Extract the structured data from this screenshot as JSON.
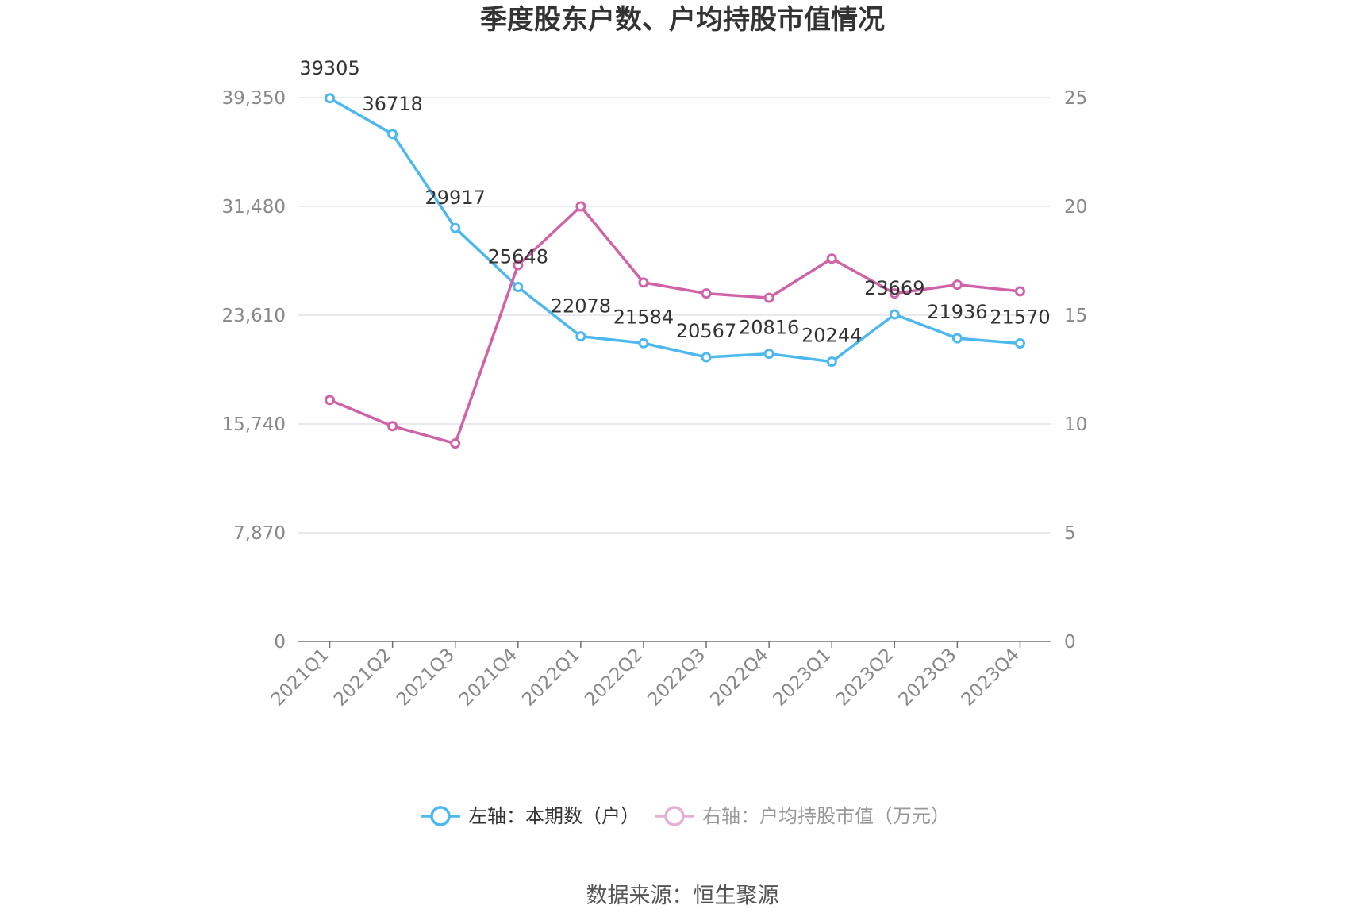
{
  "chart_data": {
    "type": "line",
    "title": "季度股东户数、户均持股市值情况",
    "categories": [
      "2021Q1",
      "2021Q2",
      "2021Q3",
      "2021Q4",
      "2022Q1",
      "2022Q2",
      "2022Q3",
      "2022Q4",
      "2023Q1",
      "2023Q2",
      "2023Q3",
      "2023Q4"
    ],
    "left_axis": {
      "ylim": [
        0,
        39350
      ],
      "ticks": [
        "0",
        "7,870",
        "15,740",
        "23,610",
        "31,480",
        "39,350"
      ]
    },
    "right_axis": {
      "ylim": [
        0,
        25
      ],
      "ticks": [
        "0",
        "5",
        "10",
        "15",
        "20",
        "25"
      ]
    },
    "series": [
      {
        "name": "左轴：本期数（户）",
        "axis": "left",
        "color": "#4DB8F0",
        "values": [
          39305,
          36718,
          29917,
          25648,
          22078,
          21584,
          20567,
          20816,
          20244,
          23669,
          21936,
          21570
        ],
        "labels": [
          "39305",
          "36718",
          "29917",
          "25648",
          "22078",
          "21584",
          "20567",
          "20816",
          "20244",
          "23669",
          "21936",
          "21570"
        ]
      },
      {
        "name": "右轴：户均持股市值（万元）",
        "axis": "right",
        "color": "#D063A8",
        "values": [
          11.1,
          9.9,
          9.1,
          17.3,
          20.0,
          16.5,
          16.0,
          15.8,
          17.6,
          16.0,
          16.4,
          16.1
        ]
      }
    ],
    "legend_position": "bottom",
    "grid": true
  },
  "footer": {
    "source": "数据来源：恒生聚源"
  }
}
